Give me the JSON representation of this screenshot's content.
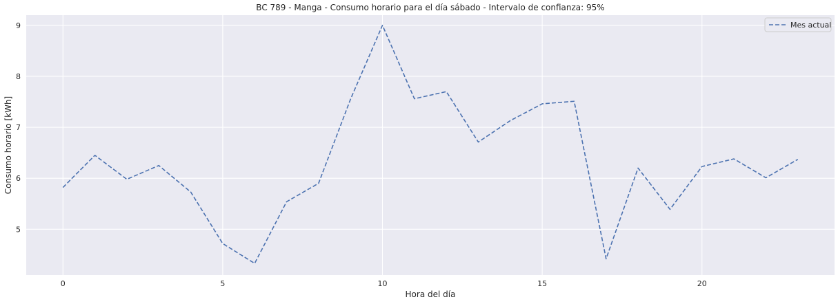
{
  "chart_data": {
    "type": "line",
    "title": "BC 789 - Manga - Consumo horario para el día sábado - Intervalo de confianza: 95%",
    "xlabel": "Hora del día",
    "ylabel": "Consumo horario [kWh]",
    "x": [
      0,
      1,
      2,
      3,
      4,
      5,
      6,
      7,
      8,
      9,
      10,
      11,
      12,
      13,
      14,
      15,
      16,
      17,
      18,
      19,
      20,
      21,
      22,
      23
    ],
    "series": [
      {
        "name": "Mes actual",
        "values": [
          5.82,
          6.45,
          5.98,
          6.25,
          5.73,
          4.72,
          4.33,
          5.54,
          5.9,
          7.55,
          9.0,
          7.56,
          7.7,
          6.71,
          7.13,
          7.46,
          7.51,
          4.42,
          6.2,
          5.39,
          6.23,
          6.38,
          6.01,
          6.37
        ],
        "color": "#4c72b0",
        "style": "dashed"
      }
    ],
    "xlim": [
      -1.15,
      24.15
    ],
    "ylim": [
      4.1,
      9.2
    ],
    "xticks": [
      0,
      5,
      10,
      15,
      20
    ],
    "yticks": [
      5,
      6,
      7,
      8,
      9
    ],
    "grid": true,
    "legend_position": "top-right",
    "background": "#eaeaf2"
  }
}
